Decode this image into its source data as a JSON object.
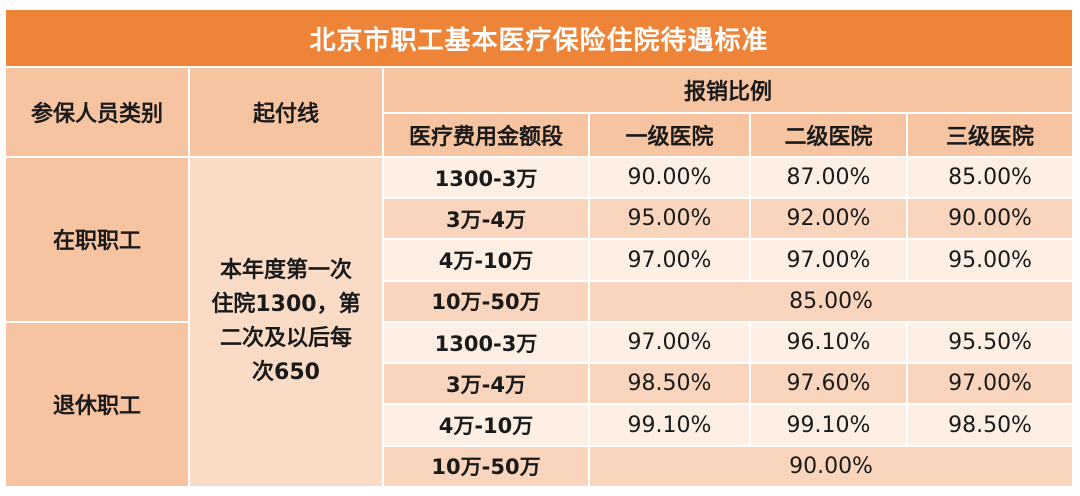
{
  "title": "北京市职工基本医疗保险住院待遇标准",
  "headers": {
    "category": "参保人员类别",
    "threshold": "起付线",
    "reimbursement": "报销比例",
    "band": "医疗费用金额段",
    "level1": "一级医院",
    "level2": "二级医院",
    "level3": "三级医院"
  },
  "threshold_lines": [
    "本年度第一次",
    "住院1300，第",
    "二次及以后每",
    "次650"
  ],
  "groups": [
    {
      "label": "在职职工",
      "rows": [
        {
          "band": "1300-3万",
          "level1": "90.00%",
          "level2": "87.00%",
          "level3": "85.00%"
        },
        {
          "band": "3万-4万",
          "level1": "95.00%",
          "level2": "92.00%",
          "level3": "90.00%"
        },
        {
          "band": "4万-10万",
          "level1": "97.00%",
          "level2": "97.00%",
          "level3": "95.00%"
        },
        {
          "band": "10万-50万",
          "merged": "85.00%"
        }
      ]
    },
    {
      "label": "退休职工",
      "rows": [
        {
          "band": "1300-3万",
          "level1": "97.00%",
          "level2": "96.10%",
          "level3": "95.50%"
        },
        {
          "band": "3万-4万",
          "level1": "98.50%",
          "level2": "97.60%",
          "level3": "97.00%"
        },
        {
          "band": "4万-10万",
          "level1": "99.10%",
          "level2": "99.10%",
          "level3": "98.50%"
        },
        {
          "band": "10万-50万",
          "merged": "90.00%"
        }
      ]
    }
  ]
}
